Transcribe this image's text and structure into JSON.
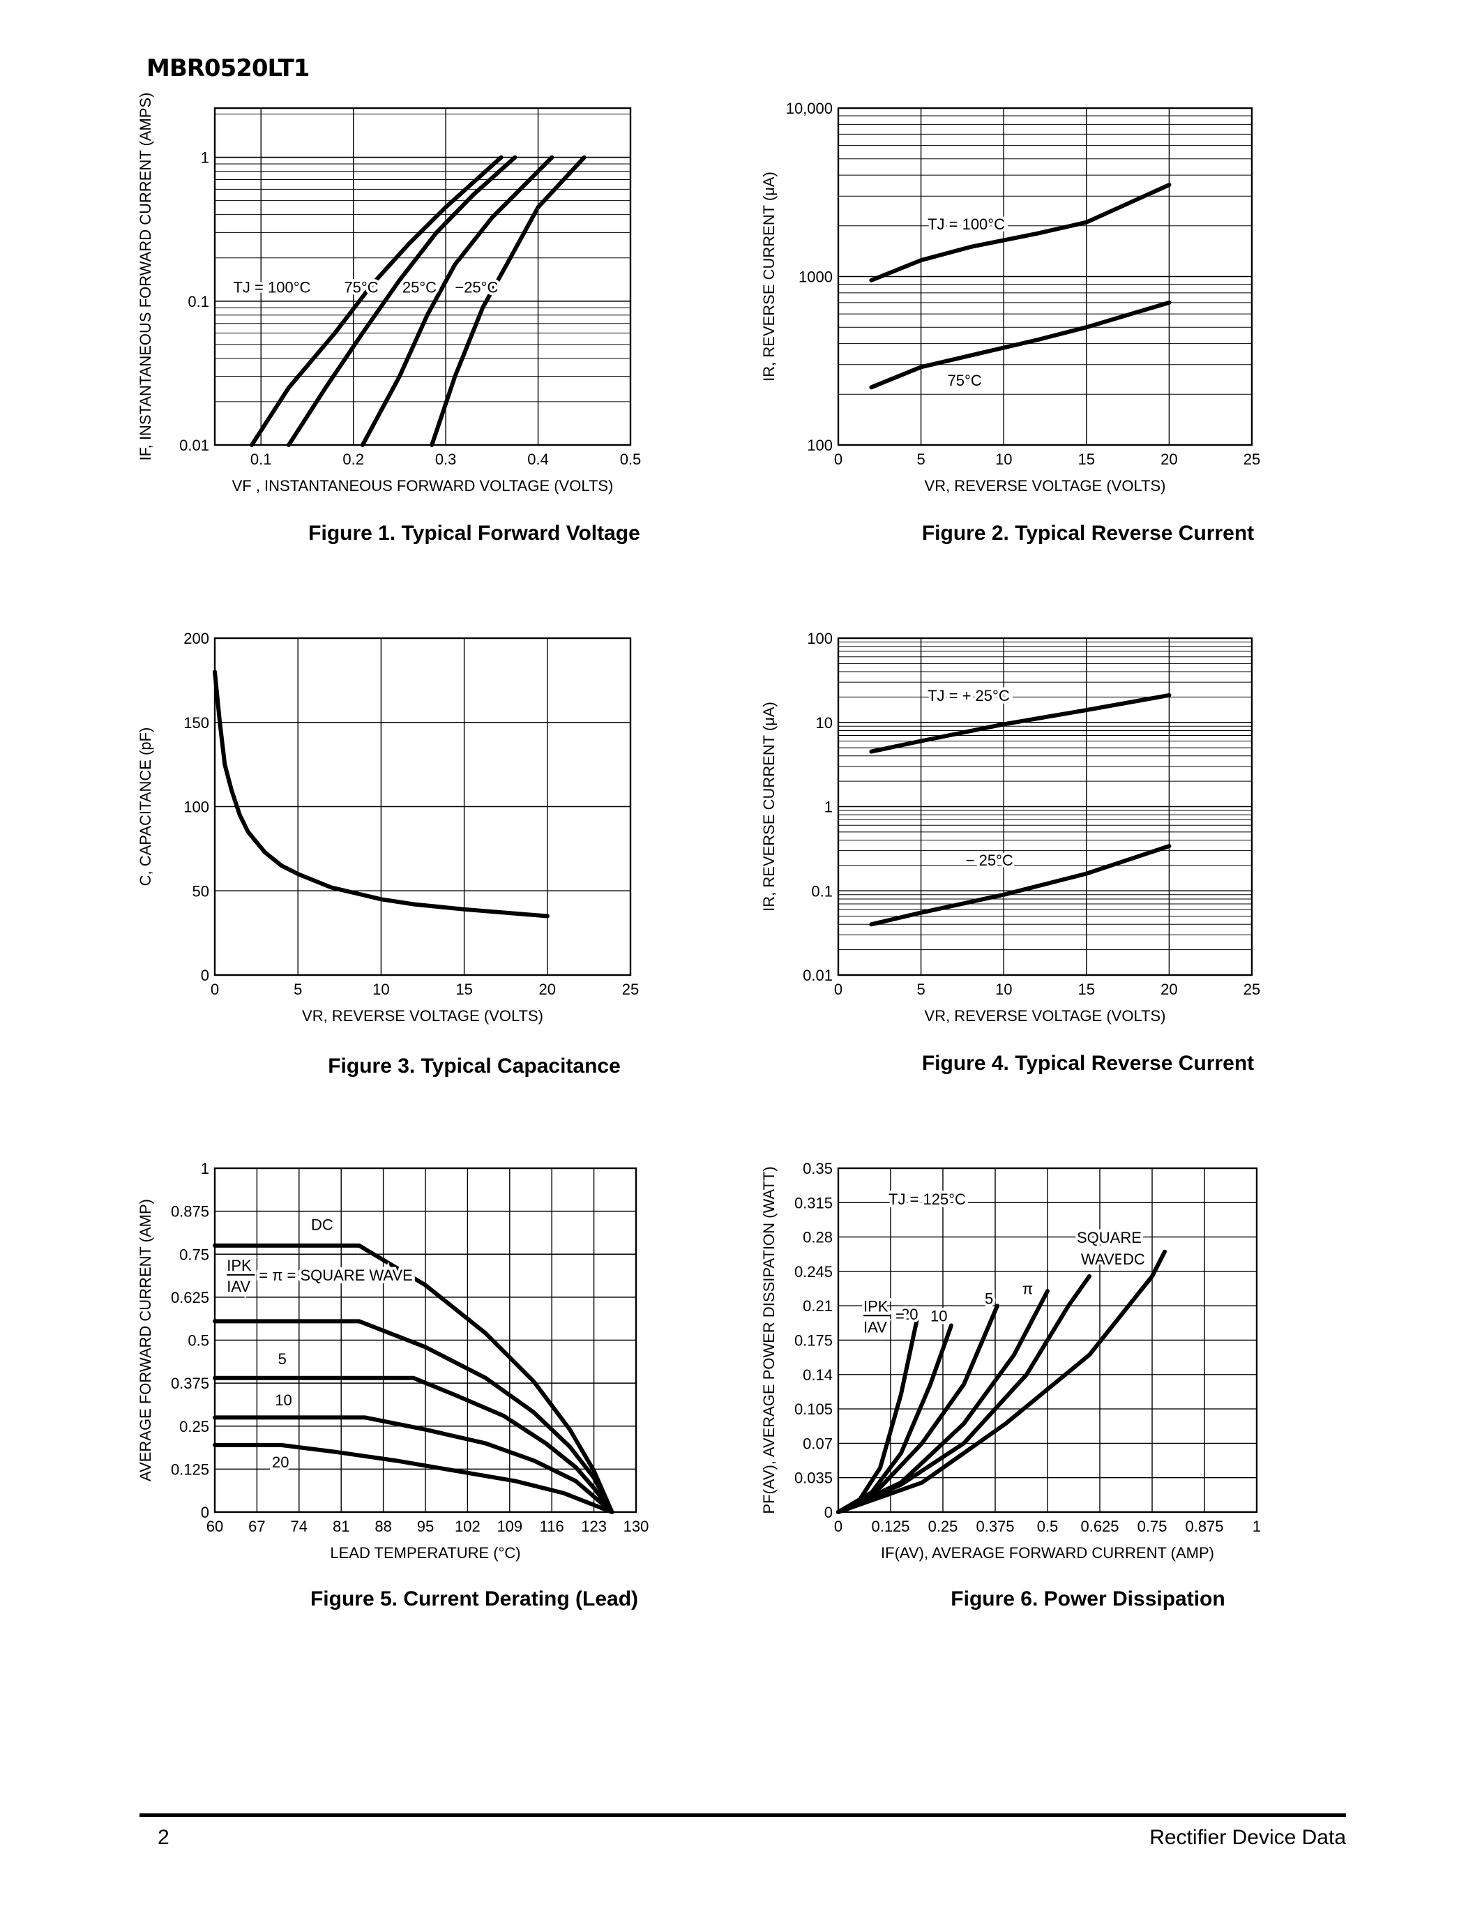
{
  "page": {
    "title": "MBR0520LT1",
    "page_number": "2",
    "footer": "Rectifier Device Data"
  },
  "chart_data": [
    {
      "id": "fig1",
      "type": "line",
      "caption": "Figure 1. Typical Forward Voltage",
      "xlabel": "VF , INSTANTANEOUS FORWARD VOLTAGE (VOLTS)",
      "ylabel": "IF, INSTANTANEOUS FORWARD CURRENT (AMPS)",
      "xscale": "linear",
      "yscale": "log",
      "xlim": [
        0.05,
        0.5
      ],
      "ylim": [
        0.01,
        2.2
      ],
      "xticks": [
        0.1,
        0.2,
        0.3,
        0.4,
        0.5
      ],
      "xticklabels": [
        "0.1",
        "0.2",
        "0.3",
        "0.4",
        "0.5"
      ],
      "yticks": [
        0.01,
        0.1,
        1
      ],
      "yticklabels": [
        "0.01",
        "0.1",
        "1"
      ],
      "grid": true,
      "series": [
        {
          "name": "TJ = 100°C",
          "points": [
            [
              0.09,
              0.01
            ],
            [
              0.13,
              0.025
            ],
            [
              0.18,
              0.06
            ],
            [
              0.22,
              0.13
            ],
            [
              0.26,
              0.25
            ],
            [
              0.3,
              0.45
            ],
            [
              0.36,
              1.0
            ]
          ]
        },
        {
          "name": "75°C",
          "points": [
            [
              0.13,
              0.01
            ],
            [
              0.17,
              0.025
            ],
            [
              0.21,
              0.06
            ],
            [
              0.25,
              0.14
            ],
            [
              0.29,
              0.3
            ],
            [
              0.33,
              0.55
            ],
            [
              0.375,
              1.0
            ]
          ]
        },
        {
          "name": "25°C",
          "points": [
            [
              0.21,
              0.01
            ],
            [
              0.25,
              0.03
            ],
            [
              0.28,
              0.08
            ],
            [
              0.31,
              0.18
            ],
            [
              0.35,
              0.38
            ],
            [
              0.415,
              1.0
            ]
          ]
        },
        {
          "name": "−25°C",
          "points": [
            [
              0.285,
              0.01
            ],
            [
              0.31,
              0.03
            ],
            [
              0.34,
              0.09
            ],
            [
              0.37,
              0.2
            ],
            [
              0.4,
              0.45
            ],
            [
              0.45,
              1.0
            ]
          ]
        }
      ],
      "annotations": [
        {
          "text": "TJ = 100°C",
          "x": 0.07,
          "y": 0.115
        },
        {
          "text": "75°C",
          "x": 0.19,
          "y": 0.115
        },
        {
          "text": "25°C",
          "x": 0.253,
          "y": 0.115
        },
        {
          "text": "−25°C",
          "x": 0.31,
          "y": 0.115
        }
      ]
    },
    {
      "id": "fig2",
      "type": "line",
      "caption": "Figure 2. Typical Reverse Current",
      "xlabel": "VR, REVERSE VOLTAGE (VOLTS)",
      "ylabel": "IR, REVERSE CURRENT (μA)",
      "xscale": "linear",
      "yscale": "log",
      "xlim": [
        0,
        25
      ],
      "ylim": [
        100,
        10000
      ],
      "xticks": [
        0,
        5,
        10,
        15,
        20,
        25
      ],
      "xticklabels": [
        "0",
        "5",
        "10",
        "15",
        "20",
        "25"
      ],
      "yticks": [
        100,
        1000,
        10000
      ],
      "yticklabels": [
        "100",
        "1000",
        "10,000"
      ],
      "grid": true,
      "series": [
        {
          "name": "TJ = 100°C",
          "points": [
            [
              2,
              950
            ],
            [
              5,
              1250
            ],
            [
              8,
              1500
            ],
            [
              12,
              1800
            ],
            [
              15,
              2100
            ],
            [
              20,
              3500
            ]
          ]
        },
        {
          "name": "75°C",
          "points": [
            [
              2,
              220
            ],
            [
              5,
              290
            ],
            [
              8,
              340
            ],
            [
              12,
              420
            ],
            [
              15,
              500
            ],
            [
              20,
              700
            ]
          ]
        }
      ],
      "annotations": [
        {
          "text": "TJ = 100°C",
          "x": 5.4,
          "y": 1900
        },
        {
          "text": "75°C",
          "x": 6.6,
          "y": 225
        }
      ]
    },
    {
      "id": "fig3",
      "type": "line",
      "caption": "Figure 3. Typical Capacitance",
      "xlabel": "VR, REVERSE VOLTAGE (VOLTS)",
      "ylabel": "C, CAPACITANCE (pF)",
      "xscale": "linear",
      "yscale": "linear",
      "xlim": [
        0,
        25
      ],
      "ylim": [
        0,
        200
      ],
      "xticks": [
        0,
        5,
        10,
        15,
        20,
        25
      ],
      "xticklabels": [
        "0",
        "5",
        "10",
        "15",
        "20",
        "25"
      ],
      "yticks": [
        0,
        50,
        100,
        150,
        200
      ],
      "yticklabels": [
        "0",
        "50",
        "100",
        "150",
        "200"
      ],
      "grid": true,
      "series": [
        {
          "name": "",
          "points": [
            [
              0,
              180
            ],
            [
              0.3,
              150
            ],
            [
              0.6,
              125
            ],
            [
              1,
              110
            ],
            [
              1.5,
              95
            ],
            [
              2,
              85
            ],
            [
              3,
              73
            ],
            [
              4,
              65
            ],
            [
              5,
              60
            ],
            [
              7,
              52
            ],
            [
              10,
              45
            ],
            [
              12,
              42
            ],
            [
              15,
              39
            ],
            [
              20,
              35
            ]
          ]
        }
      ],
      "annotations": []
    },
    {
      "id": "fig4",
      "type": "line",
      "caption": "Figure 4. Typical Reverse Current",
      "xlabel": "VR, REVERSE VOLTAGE (VOLTS)",
      "ylabel": "IR, REVERSE CURRENT (μA)",
      "xscale": "linear",
      "yscale": "log",
      "xlim": [
        0,
        25
      ],
      "ylim": [
        0.01,
        100
      ],
      "xticks": [
        0,
        5,
        10,
        15,
        20,
        25
      ],
      "xticklabels": [
        "0",
        "5",
        "10",
        "15",
        "20",
        "25"
      ],
      "yticks": [
        0.01,
        0.1,
        1,
        10,
        100
      ],
      "yticklabels": [
        "0.01",
        "0.1",
        "1",
        "10",
        "100"
      ],
      "grid": true,
      "series": [
        {
          "name": "TJ = + 25°C",
          "points": [
            [
              2,
              4.5
            ],
            [
              5,
              6
            ],
            [
              10,
              9.5
            ],
            [
              15,
              14
            ],
            [
              20,
              21
            ]
          ]
        },
        {
          "name": "− 25°C",
          "points": [
            [
              2,
              0.04
            ],
            [
              5,
              0.055
            ],
            [
              10,
              0.09
            ],
            [
              15,
              0.16
            ],
            [
              20,
              0.34
            ]
          ]
        }
      ],
      "annotations": [
        {
          "text": "TJ = + 25°C",
          "x": 5.4,
          "y": 18
        },
        {
          "text": "− 25°C",
          "x": 7.7,
          "y": 0.2
        }
      ]
    },
    {
      "id": "fig5",
      "type": "line",
      "caption": "Figure 5. Current Derating (Lead)",
      "xlabel": "LEAD TEMPERATURE (°C)",
      "ylabel": "AVERAGE FORWARD CURRENT (AMP)",
      "xscale": "linear",
      "yscale": "linear",
      "xlim": [
        60,
        130
      ],
      "ylim": [
        0,
        1
      ],
      "xticks": [
        60,
        67,
        74,
        81,
        88,
        95,
        102,
        109,
        116,
        123,
        130
      ],
      "xticklabels": [
        "60",
        "67",
        "74",
        "81",
        "88",
        "95",
        "102",
        "109",
        "116",
        "123",
        "130"
      ],
      "yticks": [
        0,
        0.125,
        0.25,
        0.375,
        0.5,
        0.625,
        0.75,
        0.875,
        1
      ],
      "yticklabels": [
        "0",
        "0.125",
        "0.25",
        "0.375",
        "0.5",
        "0.625",
        "0.75",
        "0.875",
        "1"
      ],
      "grid": true,
      "series": [
        {
          "name": "DC",
          "points": [
            [
              60,
              0.775
            ],
            [
              84,
              0.775
            ],
            [
              95,
              0.66
            ],
            [
              105,
              0.52
            ],
            [
              113,
              0.38
            ],
            [
              119,
              0.24
            ],
            [
              123,
              0.12
            ],
            [
              126,
              0
            ]
          ]
        },
        {
          "name": "SQUARE WAVE",
          "points": [
            [
              60,
              0.555
            ],
            [
              84,
              0.555
            ],
            [
              95,
              0.48
            ],
            [
              105,
              0.39
            ],
            [
              113,
              0.29
            ],
            [
              119,
              0.19
            ],
            [
              123,
              0.1
            ],
            [
              126,
              0
            ]
          ]
        },
        {
          "name": "5",
          "points": [
            [
              60,
              0.39
            ],
            [
              93,
              0.39
            ],
            [
              100,
              0.34
            ],
            [
              108,
              0.28
            ],
            [
              115,
              0.2
            ],
            [
              120,
              0.13
            ],
            [
              123,
              0.07
            ],
            [
              126,
              0
            ]
          ]
        },
        {
          "name": "10",
          "points": [
            [
              60,
              0.275
            ],
            [
              85,
              0.275
            ],
            [
              95,
              0.24
            ],
            [
              105,
              0.2
            ],
            [
              113,
              0.15
            ],
            [
              120,
              0.09
            ],
            [
              126,
              0
            ]
          ]
        },
        {
          "name": "20",
          "points": [
            [
              60,
              0.195
            ],
            [
              71,
              0.195
            ],
            [
              80,
              0.175
            ],
            [
              90,
              0.15
            ],
            [
              100,
              0.12
            ],
            [
              110,
              0.09
            ],
            [
              118,
              0.055
            ],
            [
              126,
              0
            ]
          ]
        }
      ],
      "annotations": [
        {
          "text": "DC",
          "x": 76,
          "y": 0.82
        },
        {
          "text": "5",
          "x": 70.5,
          "y": 0.43
        },
        {
          "text": "10",
          "x": 70,
          "y": 0.31
        },
        {
          "text": "20",
          "x": 69.5,
          "y": 0.13
        }
      ],
      "legend_fraction": {
        "numerator": "IPK",
        "denominator": "IAV",
        "text": "= π = SQUARE WAVE"
      }
    },
    {
      "id": "fig6",
      "type": "line",
      "caption": "Figure 6. Power Dissipation",
      "xlabel": "IF(AV), AVERAGE FORWARD CURRENT (AMP)",
      "ylabel": "PF(AV), AVERAGE POWER DISSIPATION (WATT)",
      "xscale": "linear",
      "yscale": "linear",
      "xlim": [
        0,
        1
      ],
      "ylim": [
        0,
        0.35
      ],
      "xticks": [
        0,
        0.125,
        0.25,
        0.375,
        0.5,
        0.625,
        0.75,
        0.875,
        1
      ],
      "xticklabels": [
        "0",
        "0.125",
        "0.25",
        "0.375",
        "0.5",
        "0.625",
        "0.75",
        "0.875",
        "1"
      ],
      "yticks": [
        0,
        0.035,
        0.07,
        0.105,
        0.14,
        0.175,
        0.21,
        0.245,
        0.28,
        0.315,
        0.35
      ],
      "yticklabels": [
        "0",
        "0.035",
        "0.07",
        "0.105",
        "0.14",
        "0.175",
        "0.21",
        "0.245",
        "0.28",
        "0.315",
        "0.35"
      ],
      "grid": true,
      "series": [
        {
          "name": "20",
          "points": [
            [
              0,
              0
            ],
            [
              0.05,
              0.012
            ],
            [
              0.1,
              0.045
            ],
            [
              0.15,
              0.12
            ],
            [
              0.19,
              0.2
            ]
          ]
        },
        {
          "name": "10",
          "points": [
            [
              0,
              0
            ],
            [
              0.08,
              0.02
            ],
            [
              0.15,
              0.06
            ],
            [
              0.22,
              0.13
            ],
            [
              0.27,
              0.19
            ]
          ]
        },
        {
          "name": "5",
          "points": [
            [
              0,
              0
            ],
            [
              0.1,
              0.025
            ],
            [
              0.2,
              0.07
            ],
            [
              0.3,
              0.13
            ],
            [
              0.38,
              0.21
            ]
          ]
        },
        {
          "name": "π",
          "points": [
            [
              0,
              0
            ],
            [
              0.15,
              0.03
            ],
            [
              0.3,
              0.09
            ],
            [
              0.42,
              0.16
            ],
            [
              0.5,
              0.225
            ]
          ]
        },
        {
          "name": "SQUARE WAVE",
          "points": [
            [
              0,
              0
            ],
            [
              0.15,
              0.028
            ],
            [
              0.3,
              0.07
            ],
            [
              0.45,
              0.14
            ],
            [
              0.55,
              0.21
            ],
            [
              0.6,
              0.24
            ]
          ]
        },
        {
          "name": "DC",
          "points": [
            [
              0,
              0
            ],
            [
              0.2,
              0.03
            ],
            [
              0.4,
              0.09
            ],
            [
              0.6,
              0.16
            ],
            [
              0.75,
              0.24
            ],
            [
              0.78,
              0.265
            ]
          ]
        }
      ],
      "annotations": [
        {
          "text": "TJ = 125°C",
          "x": 0.12,
          "y": 0.313
        },
        {
          "text": "SQUARE",
          "x": 0.57,
          "y": 0.274
        },
        {
          "text": "WAVE",
          "x": 0.58,
          "y": 0.252
        },
        {
          "text": "DC",
          "x": 0.68,
          "y": 0.252
        },
        {
          "text": "20",
          "x": 0.15,
          "y": 0.196
        },
        {
          "text": "10",
          "x": 0.22,
          "y": 0.194
        },
        {
          "text": "5",
          "x": 0.35,
          "y": 0.212
        },
        {
          "text": "π",
          "x": 0.44,
          "y": 0.222
        }
      ],
      "legend_fraction": {
        "numerator": "IPK",
        "denominator": "IAV",
        "text": "="
      }
    }
  ]
}
